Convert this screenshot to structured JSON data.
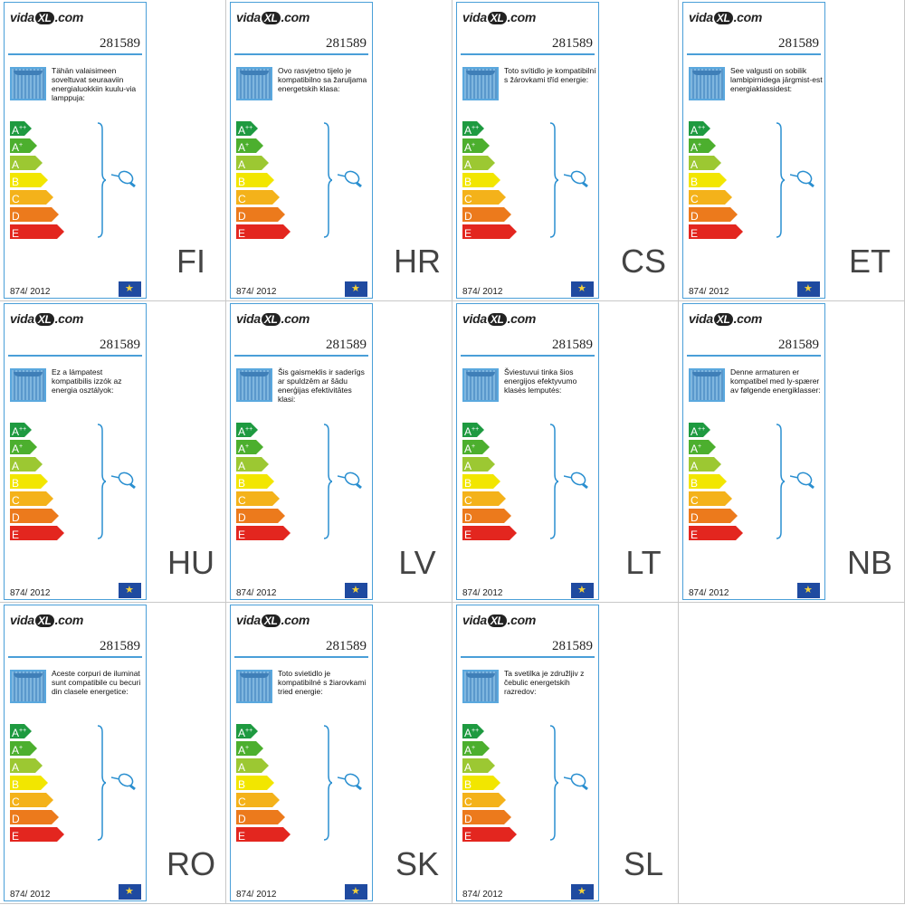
{
  "brand": {
    "prefix": "vida",
    "mark": "XL",
    "suffix": ".com"
  },
  "product_code": "281589",
  "regulation": "874/ 2012",
  "classes": [
    {
      "letter": "A",
      "sup": "++",
      "color": "#1e9a40"
    },
    {
      "letter": "A",
      "sup": "+",
      "color": "#4caf2e"
    },
    {
      "letter": "A",
      "sup": "",
      "color": "#9cc832"
    },
    {
      "letter": "B",
      "sup": "",
      "color": "#f2e600"
    },
    {
      "letter": "C",
      "sup": "",
      "color": "#f4b21a"
    },
    {
      "letter": "D",
      "sup": "",
      "color": "#ec7a1c"
    },
    {
      "letter": "E",
      "sup": "",
      "color": "#e3261f"
    }
  ],
  "labels": [
    {
      "lang": "FI",
      "text": "Tähän valaisimeen soveltuvat seuraaviin energialuokkiin kuulu-via lamppuja:"
    },
    {
      "lang": "HR",
      "text": "Ovo rasvjetno tijelo je kompatibilno sa žaruljama energetskih klasa:"
    },
    {
      "lang": "CS",
      "text": "Toto svítidlo je kompatibilní s žárovkami tříd energie:"
    },
    {
      "lang": "ET",
      "text": "See valgusti on sobilik lambipirnidega järgmist-est energiaklassidest:"
    },
    {
      "lang": "HU",
      "text": "Ez a lámpatest kompatibilis izzók az energia osztályok:"
    },
    {
      "lang": "LV",
      "text": "Šis gaismeklis ir saderīgs ar spuldzēm ar šādu enerģijas efektivitātes klasi:"
    },
    {
      "lang": "LT",
      "text": "Šviestuvui tinka šios energijos efektyvumo klasės lemputės:"
    },
    {
      "lang": "NB",
      "text": "Denne armaturen er kompatibel med ly-spærer av følgende energiklasser:"
    },
    {
      "lang": "RO",
      "text": "Aceste corpuri de iluminat sunt compatibile cu becuri din clasele energetice:"
    },
    {
      "lang": "SK",
      "text": "Toto svietidlo je kompatibilné s žiarovkami tried energie:"
    },
    {
      "lang": "SL",
      "text": "Ta svetilka je združljiv z čebulic energetskih razredov:"
    }
  ]
}
